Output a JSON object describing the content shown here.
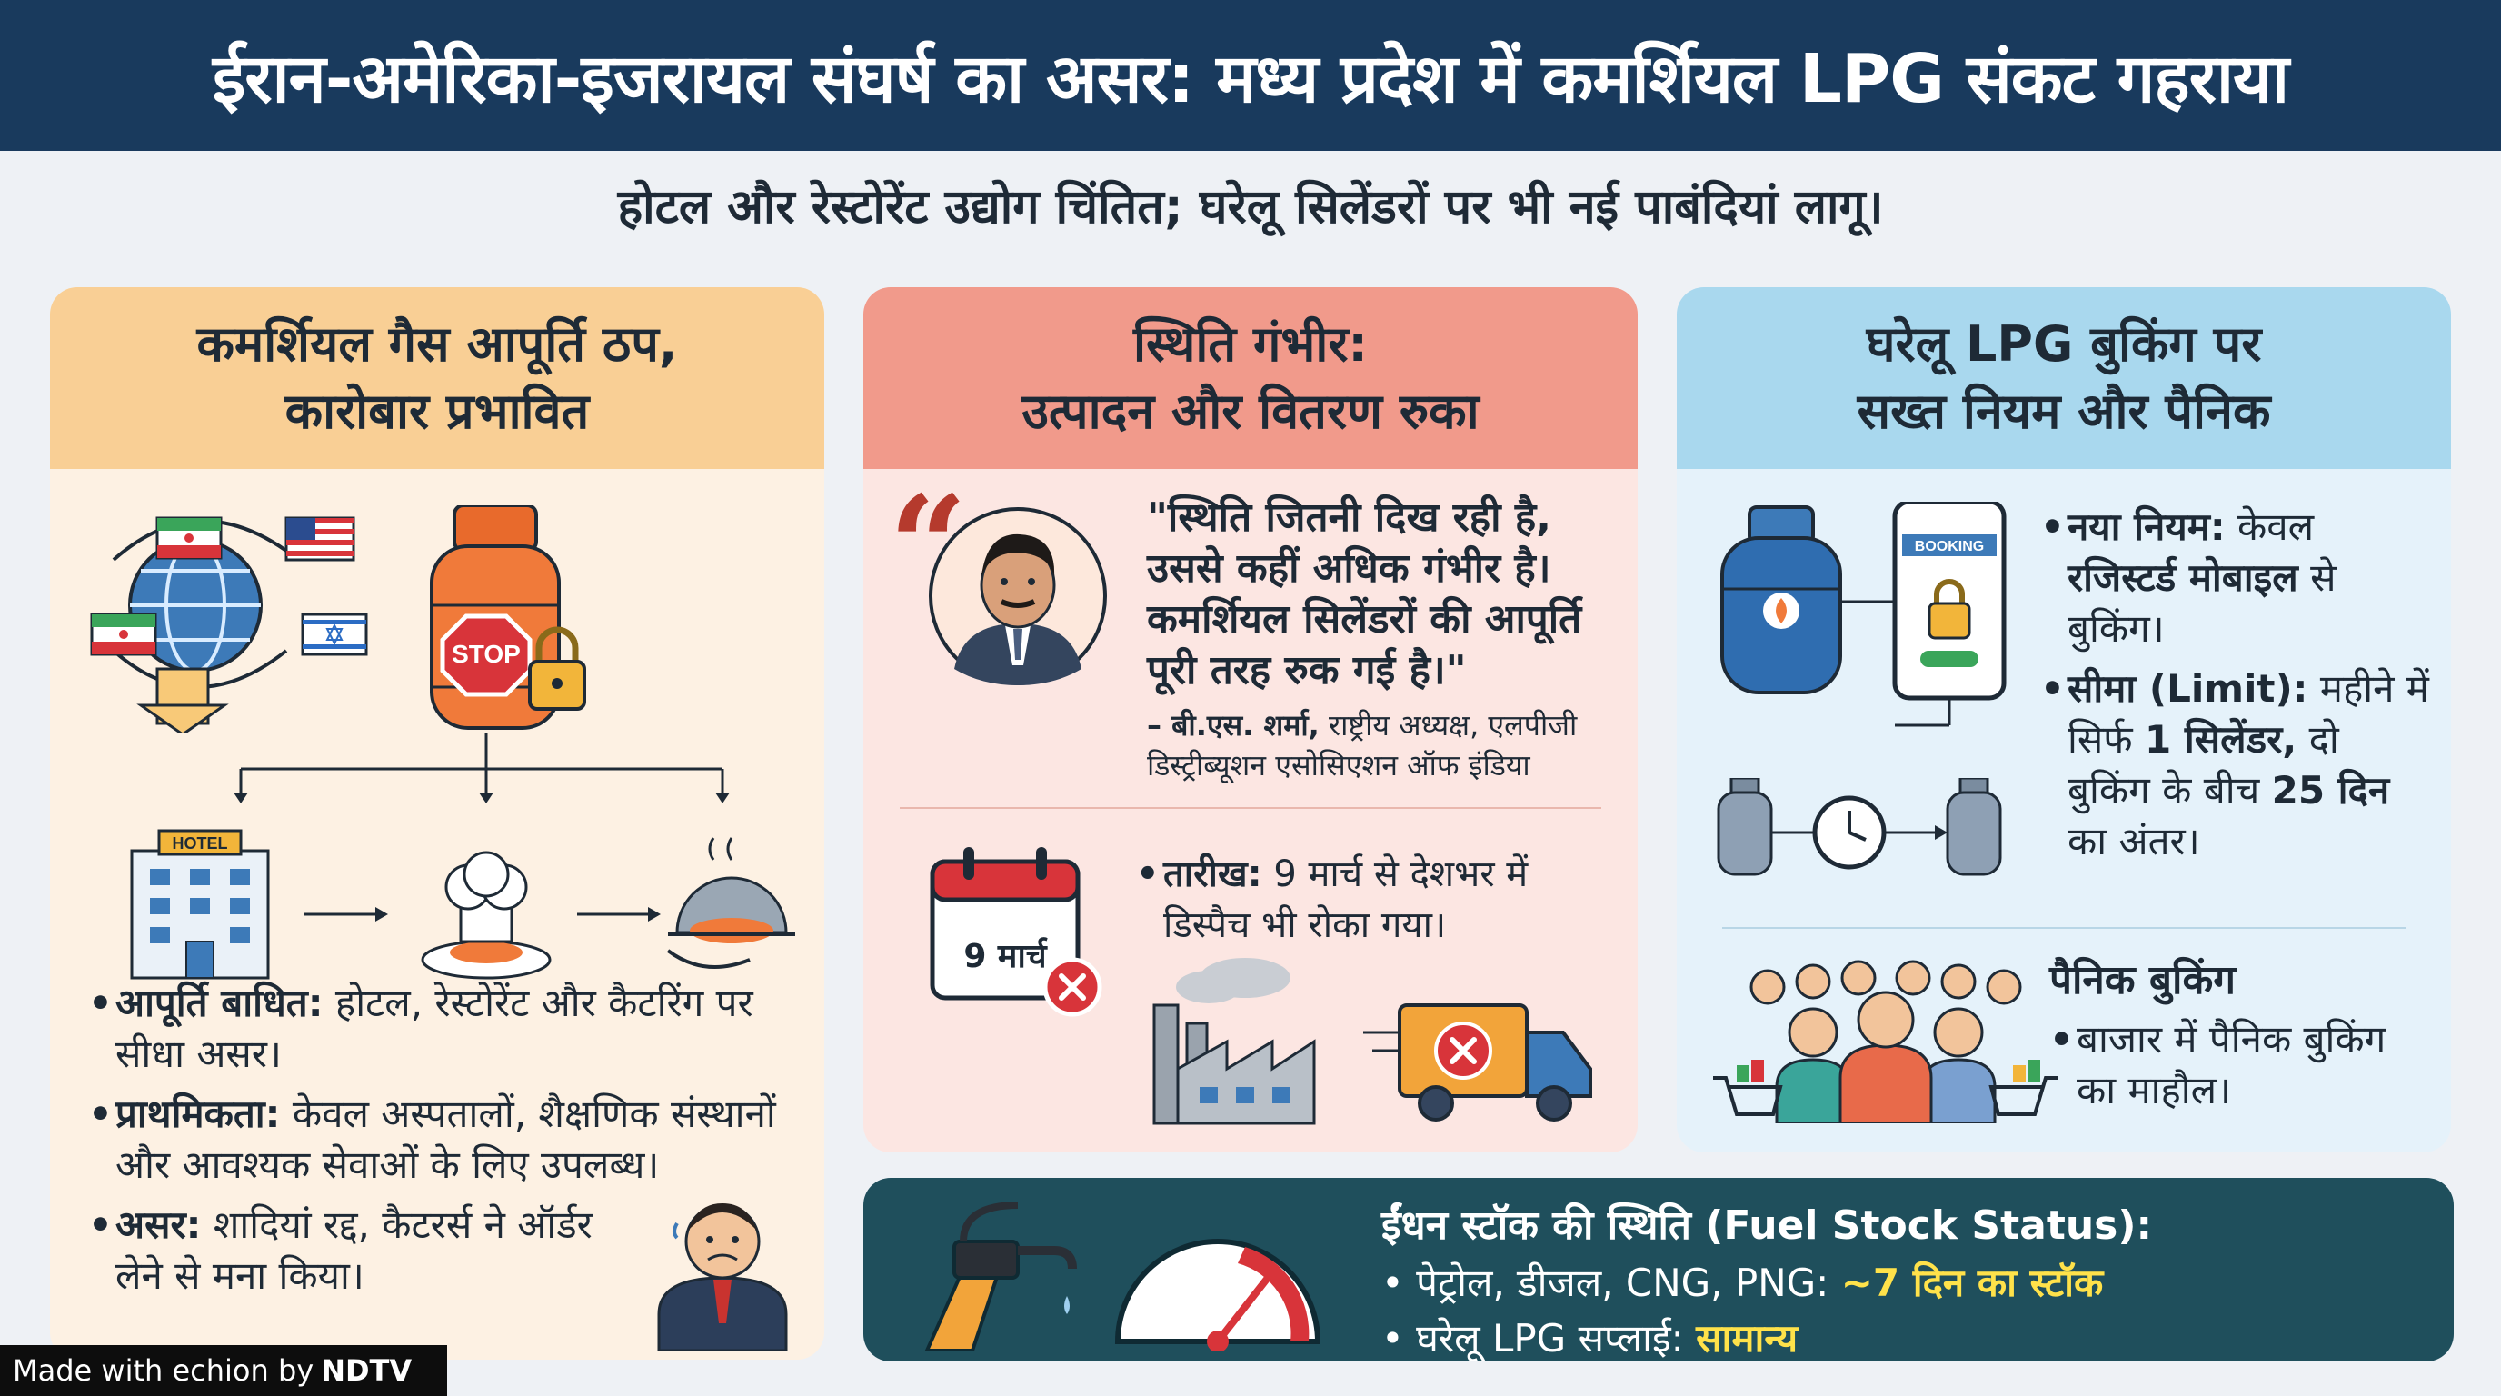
{
  "header": {
    "title": "ईरान-अमेरिका-इजरायल संघर्ष का असर: मध्य प्रदेश में कमर्शियल LPG संकट गहराया"
  },
  "subtitle": "होटल और रेस्टोरेंट उद्योग चिंतित; घरेलू सिलेंडरों पर भी नई पाबंदियां लागू।",
  "left_card": {
    "title_line1": "कमर्शियल गैस आपूर्ति ठप,",
    "title_line2": "कारोबार प्रभावित",
    "stop_sign": "STOP",
    "hotel_sign": "HOTEL",
    "bullets": [
      {
        "label": "आपूर्ति बाधित:",
        "text": "होटल, रेस्टोरेंट और कैटरिंग पर सीधा असर।"
      },
      {
        "label": "प्राथमिकता:",
        "text": "केवल अस्पतालों, शैक्षणिक संस्थानों और आवश्यक सेवाओं के लिए उपलब्ध।"
      },
      {
        "label": "असर:",
        "text": "शादियां रद्द, कैटरर्स ने ऑर्डर लेने से मना किया।"
      }
    ]
  },
  "mid_card": {
    "title_line1": "स्थिति गंभीर:",
    "title_line2": "उत्पादन और वितरण रुका",
    "quote_mark": "“",
    "quote_line1": "\"स्थिति जितनी दिख रही है,",
    "quote_line2": "उससे कहीं अधिक गंभीर है।",
    "quote_line3": "कमर्शियल सिलेंडरों की आपूर्ति",
    "quote_line4": "पूरी तरह रुक गई है।\"",
    "attr_name": "– बी.एस. शर्मा,",
    "attr_line1_rest": "राष्ट्रीय अध्यक्ष, एलपीजी",
    "attr_line2": "डिस्ट्रीब्यूशन एसोसिएशन ऑफ इंडिया",
    "calendar_text": "9 मार्च",
    "date_label": "तारीख:",
    "date_text_line1": "9 मार्च से देशभर में",
    "date_text_line2": "डिस्पैच भी रोका गया।"
  },
  "right_card": {
    "title_line1": "घरेलू LPG बुकिंग पर",
    "title_line2": "सख्त नियम और पैनिक",
    "booking_label": "BOOKING",
    "rule_label": "नया नियम:",
    "rule_text_1": "केवल",
    "rule_bold": "रजिस्टर्ड मोबाइल",
    "rule_text_2": "से",
    "rule_text_3": "बुकिंग।",
    "limit_label": "सीमा (Limit):",
    "limit_text_1": "महीने में",
    "limit_text_2": "सिर्फ",
    "limit_bold_1": "1 सिलेंडर,",
    "limit_text_3": "दो",
    "limit_text_4": "बुकिंग के बीच",
    "limit_bold_2": "25 दिन",
    "limit_text_5": "का अंतर।",
    "panic_title": "पैनिक बुकिंग",
    "panic_line1": "बाजार में पैनिक बुकिंग",
    "panic_line2": "का माहौल।"
  },
  "fuel_status": {
    "title": "ईंधन स्टॉक की स्थिति (Fuel Stock Status):",
    "line1_label": "पेट्रोल, डीजल, CNG, PNG:",
    "line1_value": "~7 दिन का स्टॉक",
    "line2_label": "घरेलू LPG सप्लाई:",
    "line2_value": "सामान्य"
  },
  "watermark": {
    "made_with": "Made with",
    "tool": "echion",
    "by": "by",
    "brand": "NDTV"
  },
  "colors": {
    "header_bg": "#193a5d",
    "left_head": "#f9cf95",
    "mid_head": "#f19a8b",
    "right_head": "#a9d8ee",
    "fuel_bg": "#1f4f5c",
    "highlight": "#ffe24a"
  }
}
